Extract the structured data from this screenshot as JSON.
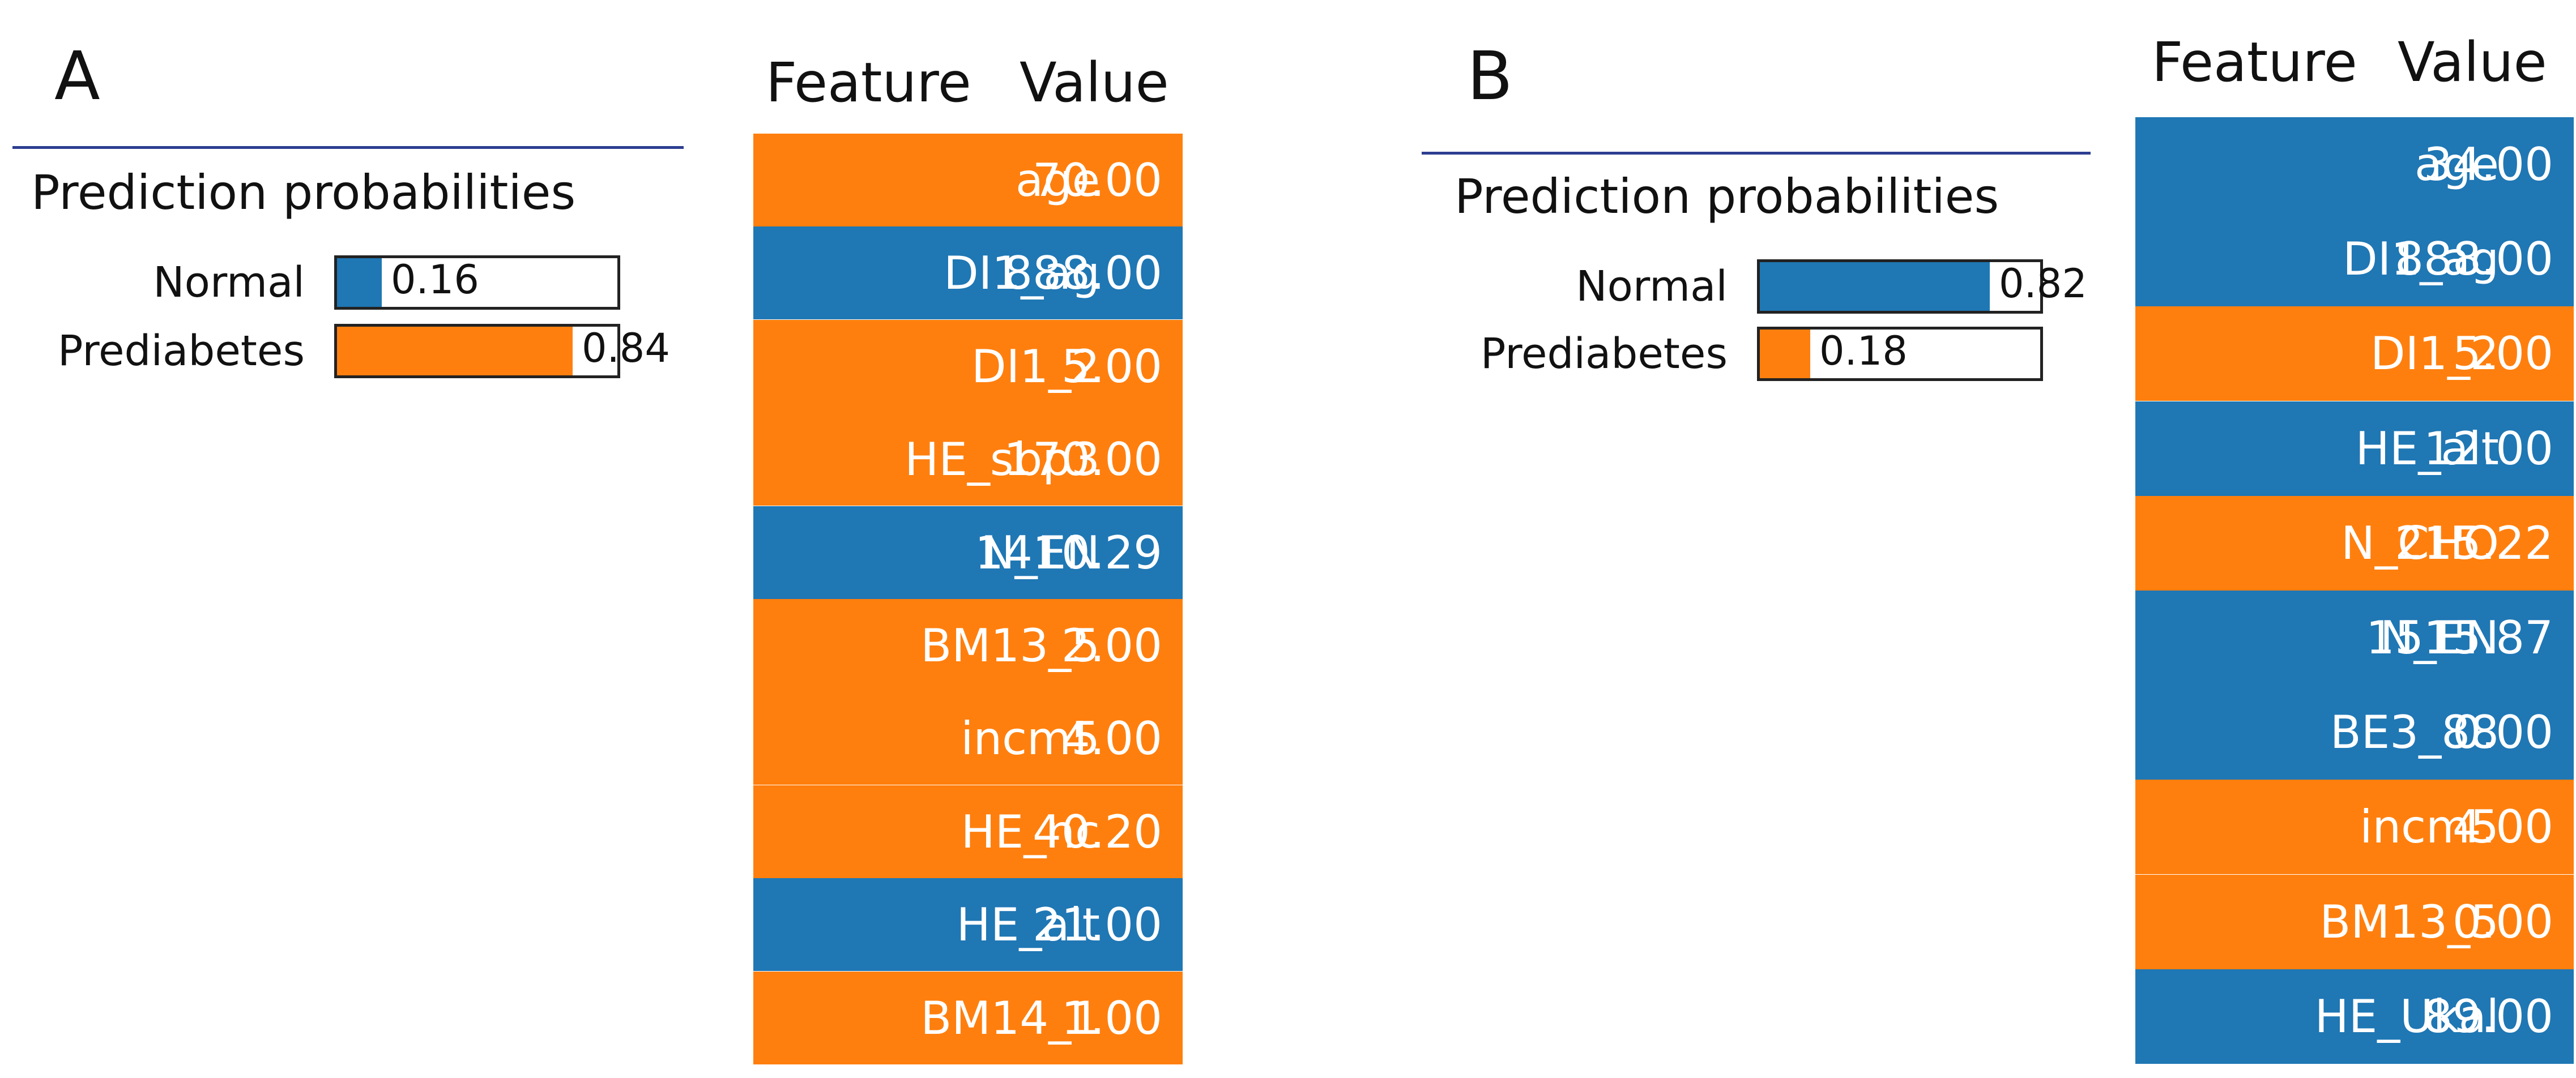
{
  "colors": {
    "normal": "#1f77b4",
    "prediabetes": "#ff7f0e",
    "divider": "#2c3e91"
  },
  "chart_data": [
    {
      "type": "table",
      "panel_label": "A",
      "prediction_title": "Prediction probabilities",
      "probabilities": [
        {
          "label": "Normal",
          "value": 0.16,
          "value_text": "0.16",
          "color": "#1f77b4"
        },
        {
          "label": "Prediabetes",
          "value": 0.84,
          "value_text": "0.84",
          "color": "#ff7f0e"
        }
      ],
      "columns": [
        "Feature",
        "Value"
      ],
      "rows": [
        {
          "feature": "age",
          "value": "70.00",
          "class": "Prediabetes"
        },
        {
          "feature": "DI1_ag",
          "value": "888.00",
          "class": "Normal"
        },
        {
          "feature": "DI1_2",
          "value": "5.00",
          "class": "Prediabetes"
        },
        {
          "feature": "HE_sbp3",
          "value": "170.00",
          "class": "Prediabetes"
        },
        {
          "feature": "N_EN",
          "value": "1410.29",
          "class": "Normal"
        },
        {
          "feature": "BM13_5",
          "value": "2.00",
          "class": "Prediabetes"
        },
        {
          "feature": "incm5",
          "value": "4.00",
          "class": "Prediabetes"
        },
        {
          "feature": "HE_nc",
          "value": "40.20",
          "class": "Prediabetes"
        },
        {
          "feature": "HE_alt",
          "value": "21.00",
          "class": "Normal"
        },
        {
          "feature": "BM14_1",
          "value": "1.00",
          "class": "Prediabetes"
        }
      ]
    },
    {
      "type": "table",
      "panel_label": "B",
      "prediction_title": "Prediction probabilities",
      "probabilities": [
        {
          "label": "Normal",
          "value": 0.82,
          "value_text": "0.82",
          "color": "#1f77b4"
        },
        {
          "label": "Prediabetes",
          "value": 0.18,
          "value_text": "0.18",
          "color": "#ff7f0e"
        }
      ],
      "columns": [
        "Feature",
        "Value"
      ],
      "rows": [
        {
          "feature": "age",
          "value": "34.00",
          "class": "Normal"
        },
        {
          "feature": "DI1_ag",
          "value": "888.00",
          "class": "Normal"
        },
        {
          "feature": "DI1_2",
          "value": "5.00",
          "class": "Prediabetes"
        },
        {
          "feature": "HE_alt",
          "value": "12.00",
          "class": "Normal"
        },
        {
          "feature": "N_CHO",
          "value": "215.22",
          "class": "Prediabetes"
        },
        {
          "feature": "N_EN",
          "value": "1515.87",
          "class": "Normal"
        },
        {
          "feature": "BE3_88",
          "value": "0.00",
          "class": "Normal"
        },
        {
          "feature": "incm5",
          "value": "4.00",
          "class": "Prediabetes"
        },
        {
          "feature": "BM13_5",
          "value": "0.00",
          "class": "Prediabetes"
        },
        {
          "feature": "HE_Ukal",
          "value": "89.00",
          "class": "Normal"
        }
      ]
    }
  ]
}
